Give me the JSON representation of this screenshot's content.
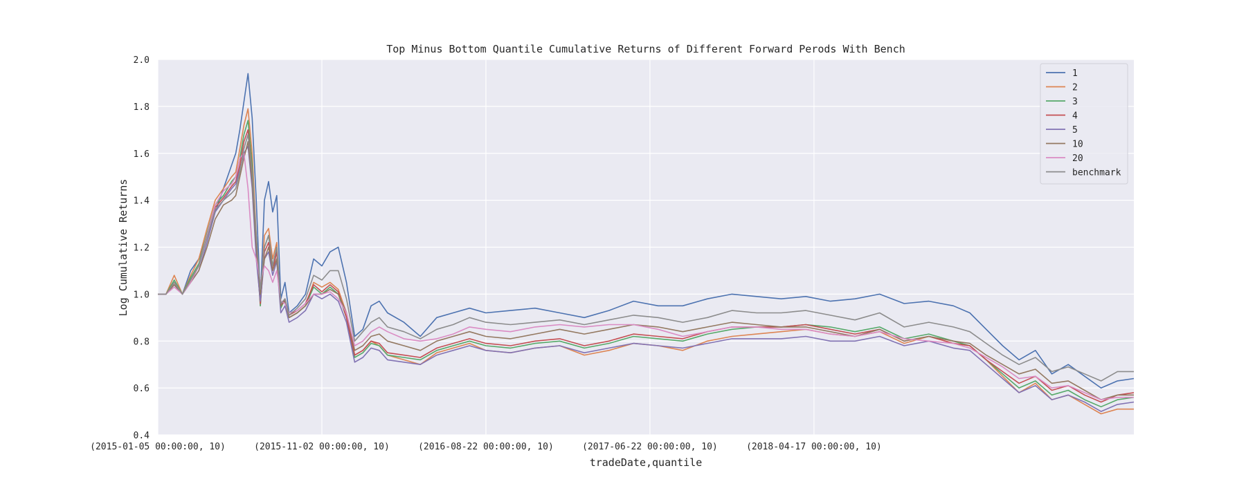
{
  "chart_data": {
    "type": "line",
    "title": "Top Minus Bottom Quantile Cumulative Returns of Different Forward Perods With Bench",
    "xlabel": "tradeDate,quantile",
    "ylabel": "Log Cumulative Returns",
    "ylim": [
      0.4,
      2.0
    ],
    "yticks": [
      "0.4",
      "0.6",
      "0.8",
      "1.0",
      "1.2",
      "1.4",
      "1.6",
      "1.8",
      "2.0"
    ],
    "xticks": [
      "(2015-01-05 00:00:00, 10)",
      "(2015-11-02 00:00:00, 10)",
      "(2016-08-22 00:00:00, 10)",
      "(2017-06-22 00:00:00, 10)",
      "(2018-04-17 00:00:00, 10)"
    ],
    "grid": true,
    "legend_position": "top-right",
    "x_range_trading_days": [
      0,
      1190
    ],
    "xtick_positions_trading_days": [
      0,
      200,
      400,
      600,
      800
    ],
    "series": [
      {
        "name": "1",
        "color": "#4c72b0",
        "x": [
          0,
          10,
          20,
          30,
          40,
          50,
          60,
          70,
          80,
          90,
          95,
          100,
          105,
          110,
          115,
          120,
          125,
          130,
          135,
          140,
          145,
          150,
          155,
          160,
          170,
          180,
          190,
          200,
          210,
          220,
          230,
          240,
          250,
          260,
          270,
          280,
          300,
          320,
          340,
          360,
          380,
          400,
          430,
          460,
          490,
          520,
          550,
          580,
          610,
          640,
          670,
          700,
          730,
          760,
          790,
          820,
          850,
          880,
          910,
          940,
          970,
          990,
          1010,
          1030,
          1050,
          1070,
          1090,
          1110,
          1130,
          1150,
          1170,
          1190
        ],
        "y": [
          1.0,
          1.0,
          1.05,
          1.0,
          1.1,
          1.15,
          1.25,
          1.35,
          1.45,
          1.55,
          1.6,
          1.7,
          1.82,
          1.94,
          1.75,
          1.4,
          0.98,
          1.4,
          1.48,
          1.35,
          1.42,
          0.98,
          1.05,
          0.92,
          0.95,
          1.0,
          1.15,
          1.12,
          1.18,
          1.2,
          1.05,
          0.82,
          0.85,
          0.95,
          0.97,
          0.92,
          0.88,
          0.82,
          0.9,
          0.92,
          0.94,
          0.92,
          0.93,
          0.94,
          0.92,
          0.9,
          0.93,
          0.97,
          0.95,
          0.95,
          0.98,
          1.0,
          0.99,
          0.98,
          0.99,
          0.97,
          0.98,
          1.0,
          0.96,
          0.97,
          0.95,
          0.92,
          0.85,
          0.78,
          0.72,
          0.76,
          0.66,
          0.7,
          0.65,
          0.6,
          0.63,
          0.64
        ]
      },
      {
        "name": "2",
        "color": "#dd8452",
        "x": [
          0,
          10,
          20,
          30,
          40,
          50,
          60,
          70,
          80,
          90,
          95,
          100,
          105,
          110,
          115,
          120,
          125,
          130,
          135,
          140,
          145,
          150,
          155,
          160,
          170,
          180,
          190,
          200,
          210,
          220,
          230,
          240,
          250,
          260,
          270,
          280,
          300,
          320,
          340,
          360,
          380,
          400,
          430,
          460,
          490,
          520,
          550,
          580,
          610,
          640,
          670,
          700,
          730,
          760,
          790,
          820,
          850,
          880,
          910,
          940,
          970,
          990,
          1010,
          1030,
          1050,
          1070,
          1090,
          1110,
          1130,
          1150,
          1170,
          1190
        ],
        "y": [
          1.0,
          1.0,
          1.08,
          1.0,
          1.08,
          1.15,
          1.28,
          1.4,
          1.45,
          1.5,
          1.52,
          1.62,
          1.72,
          1.79,
          1.6,
          1.25,
          0.95,
          1.25,
          1.28,
          1.15,
          1.22,
          0.95,
          0.98,
          0.9,
          0.92,
          0.95,
          1.05,
          1.03,
          1.05,
          1.02,
          0.92,
          0.74,
          0.76,
          0.8,
          0.78,
          0.74,
          0.72,
          0.7,
          0.75,
          0.77,
          0.79,
          0.76,
          0.75,
          0.77,
          0.78,
          0.74,
          0.76,
          0.79,
          0.78,
          0.76,
          0.8,
          0.82,
          0.83,
          0.84,
          0.85,
          0.83,
          0.82,
          0.84,
          0.79,
          0.82,
          0.79,
          0.78,
          0.72,
          0.65,
          0.58,
          0.62,
          0.55,
          0.57,
          0.53,
          0.49,
          0.51,
          0.51
        ]
      },
      {
        "name": "3",
        "color": "#55a868",
        "x": [
          0,
          10,
          20,
          30,
          40,
          50,
          60,
          70,
          80,
          90,
          95,
          100,
          105,
          110,
          115,
          120,
          125,
          130,
          135,
          140,
          145,
          150,
          155,
          160,
          170,
          180,
          190,
          200,
          210,
          220,
          230,
          240,
          250,
          260,
          270,
          280,
          300,
          320,
          340,
          360,
          380,
          400,
          430,
          460,
          490,
          520,
          550,
          580,
          610,
          640,
          670,
          700,
          730,
          760,
          790,
          820,
          850,
          880,
          910,
          940,
          970,
          990,
          1010,
          1030,
          1050,
          1070,
          1090,
          1110,
          1130,
          1150,
          1170,
          1190
        ],
        "y": [
          1.0,
          1.0,
          1.06,
          1.0,
          1.07,
          1.13,
          1.26,
          1.38,
          1.42,
          1.48,
          1.5,
          1.58,
          1.68,
          1.74,
          1.55,
          1.2,
          0.95,
          1.2,
          1.25,
          1.12,
          1.2,
          0.94,
          0.98,
          0.9,
          0.92,
          0.95,
          1.03,
          1.0,
          1.03,
          1.0,
          0.9,
          0.73,
          0.75,
          0.79,
          0.78,
          0.74,
          0.73,
          0.72,
          0.76,
          0.78,
          0.8,
          0.78,
          0.77,
          0.79,
          0.8,
          0.77,
          0.79,
          0.82,
          0.81,
          0.8,
          0.83,
          0.85,
          0.86,
          0.86,
          0.87,
          0.86,
          0.84,
          0.86,
          0.81,
          0.83,
          0.8,
          0.78,
          0.72,
          0.66,
          0.6,
          0.63,
          0.57,
          0.59,
          0.55,
          0.52,
          0.55,
          0.56
        ]
      },
      {
        "name": "4",
        "color": "#c44e52",
        "x": [
          0,
          10,
          20,
          30,
          40,
          50,
          60,
          70,
          80,
          90,
          95,
          100,
          105,
          110,
          115,
          120,
          125,
          130,
          135,
          140,
          145,
          150,
          155,
          160,
          170,
          180,
          190,
          200,
          210,
          220,
          230,
          240,
          250,
          260,
          270,
          280,
          300,
          320,
          340,
          360,
          380,
          400,
          430,
          460,
          490,
          520,
          550,
          580,
          610,
          640,
          670,
          700,
          730,
          760,
          790,
          820,
          850,
          880,
          910,
          940,
          970,
          990,
          1010,
          1030,
          1050,
          1070,
          1090,
          1110,
          1130,
          1150,
          1170,
          1190
        ],
        "y": [
          1.0,
          1.0,
          1.05,
          1.0,
          1.06,
          1.12,
          1.25,
          1.37,
          1.41,
          1.46,
          1.48,
          1.55,
          1.65,
          1.7,
          1.52,
          1.18,
          0.96,
          1.18,
          1.22,
          1.1,
          1.18,
          0.95,
          0.98,
          0.91,
          0.93,
          0.96,
          1.04,
          1.01,
          1.04,
          1.01,
          0.9,
          0.74,
          0.76,
          0.8,
          0.79,
          0.75,
          0.74,
          0.73,
          0.77,
          0.79,
          0.81,
          0.79,
          0.78,
          0.8,
          0.81,
          0.78,
          0.8,
          0.83,
          0.82,
          0.81,
          0.84,
          0.86,
          0.86,
          0.86,
          0.87,
          0.85,
          0.83,
          0.85,
          0.8,
          0.82,
          0.79,
          0.78,
          0.72,
          0.67,
          0.62,
          0.65,
          0.59,
          0.61,
          0.57,
          0.54,
          0.57,
          0.58
        ]
      },
      {
        "name": "5",
        "color": "#8172b3",
        "x": [
          0,
          10,
          20,
          30,
          40,
          50,
          60,
          70,
          80,
          90,
          95,
          100,
          105,
          110,
          115,
          120,
          125,
          130,
          135,
          140,
          145,
          150,
          155,
          160,
          170,
          180,
          190,
          200,
          210,
          220,
          230,
          240,
          250,
          260,
          270,
          280,
          300,
          320,
          340,
          360,
          380,
          400,
          430,
          460,
          490,
          520,
          550,
          580,
          610,
          640,
          670,
          700,
          730,
          760,
          790,
          820,
          850,
          880,
          910,
          940,
          970,
          990,
          1010,
          1030,
          1050,
          1070,
          1090,
          1110,
          1130,
          1150,
          1170,
          1190
        ],
        "y": [
          1.0,
          1.0,
          1.04,
          1.0,
          1.05,
          1.1,
          1.22,
          1.35,
          1.4,
          1.45,
          1.47,
          1.53,
          1.6,
          1.63,
          1.45,
          1.15,
          0.97,
          1.15,
          1.18,
          1.08,
          1.14,
          0.92,
          0.95,
          0.88,
          0.9,
          0.93,
          1.0,
          0.98,
          1.0,
          0.97,
          0.88,
          0.71,
          0.73,
          0.77,
          0.76,
          0.72,
          0.71,
          0.7,
          0.74,
          0.76,
          0.78,
          0.76,
          0.75,
          0.77,
          0.78,
          0.75,
          0.77,
          0.79,
          0.78,
          0.77,
          0.79,
          0.81,
          0.81,
          0.81,
          0.82,
          0.8,
          0.8,
          0.82,
          0.78,
          0.8,
          0.77,
          0.76,
          0.7,
          0.64,
          0.58,
          0.61,
          0.55,
          0.57,
          0.54,
          0.5,
          0.53,
          0.54
        ]
      },
      {
        "name": "10",
        "color": "#937860",
        "x": [
          0,
          10,
          20,
          30,
          40,
          50,
          60,
          70,
          80,
          90,
          95,
          100,
          105,
          110,
          115,
          120,
          125,
          130,
          135,
          140,
          145,
          150,
          155,
          160,
          170,
          180,
          190,
          200,
          210,
          220,
          230,
          240,
          250,
          260,
          270,
          280,
          300,
          320,
          340,
          360,
          380,
          400,
          430,
          460,
          490,
          520,
          550,
          580,
          610,
          640,
          670,
          700,
          730,
          760,
          790,
          820,
          850,
          880,
          910,
          940,
          970,
          990,
          1010,
          1030,
          1050,
          1070,
          1090,
          1110,
          1130,
          1150,
          1170,
          1190
        ],
        "y": [
          1.0,
          1.0,
          1.04,
          1.0,
          1.05,
          1.1,
          1.2,
          1.32,
          1.38,
          1.4,
          1.42,
          1.5,
          1.58,
          1.65,
          1.48,
          1.2,
          1.0,
          1.15,
          1.2,
          1.1,
          1.15,
          0.95,
          0.97,
          0.9,
          0.92,
          0.95,
          1.0,
          1.0,
          1.02,
          1.0,
          0.92,
          0.76,
          0.78,
          0.82,
          0.83,
          0.8,
          0.78,
          0.76,
          0.8,
          0.82,
          0.84,
          0.82,
          0.81,
          0.83,
          0.85,
          0.83,
          0.85,
          0.87,
          0.86,
          0.84,
          0.86,
          0.88,
          0.87,
          0.86,
          0.86,
          0.84,
          0.82,
          0.85,
          0.8,
          0.82,
          0.8,
          0.79,
          0.74,
          0.7,
          0.66,
          0.68,
          0.62,
          0.63,
          0.59,
          0.55,
          0.57,
          0.57
        ]
      },
      {
        "name": "20",
        "color": "#da8bc3",
        "x": [
          0,
          10,
          20,
          30,
          40,
          50,
          60,
          70,
          80,
          90,
          95,
          100,
          105,
          110,
          115,
          120,
          125,
          130,
          135,
          140,
          145,
          150,
          155,
          160,
          170,
          180,
          190,
          200,
          210,
          220,
          230,
          240,
          250,
          260,
          270,
          280,
          300,
          320,
          340,
          360,
          380,
          400,
          430,
          460,
          490,
          520,
          550,
          580,
          610,
          640,
          670,
          700,
          730,
          760,
          790,
          820,
          850,
          880,
          910,
          940,
          970,
          990,
          1010,
          1030,
          1050,
          1070,
          1090,
          1110,
          1130,
          1150,
          1170,
          1190
        ],
        "y": [
          1.0,
          1.0,
          1.03,
          1.0,
          1.05,
          1.12,
          1.25,
          1.38,
          1.44,
          1.47,
          1.5,
          1.58,
          1.6,
          1.45,
          1.2,
          1.15,
          1.05,
          1.12,
          1.1,
          1.05,
          1.1,
          0.97,
          0.96,
          0.92,
          0.93,
          0.96,
          1.0,
          1.0,
          1.01,
          0.98,
          0.92,
          0.78,
          0.8,
          0.84,
          0.86,
          0.84,
          0.81,
          0.8,
          0.81,
          0.83,
          0.86,
          0.85,
          0.84,
          0.86,
          0.87,
          0.86,
          0.87,
          0.87,
          0.85,
          0.82,
          0.84,
          0.86,
          0.86,
          0.85,
          0.85,
          0.83,
          0.82,
          0.84,
          0.81,
          0.8,
          0.79,
          0.77,
          0.73,
          0.69,
          0.64,
          0.65,
          0.6,
          0.61,
          0.58,
          0.55,
          0.56,
          0.56
        ]
      },
      {
        "name": "benchmark",
        "color": "#8c8c8c",
        "x": [
          0,
          10,
          20,
          30,
          40,
          50,
          60,
          70,
          80,
          90,
          95,
          100,
          105,
          110,
          115,
          120,
          125,
          130,
          135,
          140,
          145,
          150,
          155,
          160,
          170,
          180,
          190,
          200,
          210,
          220,
          230,
          240,
          250,
          260,
          270,
          280,
          300,
          320,
          340,
          360,
          380,
          400,
          430,
          460,
          490,
          520,
          550,
          580,
          610,
          640,
          670,
          700,
          730,
          760,
          790,
          820,
          850,
          880,
          910,
          940,
          970,
          990,
          1010,
          1030,
          1050,
          1070,
          1090,
          1110,
          1130,
          1150,
          1170,
          1190
        ],
        "y": [
          1.0,
          1.0,
          1.05,
          1.0,
          1.06,
          1.12,
          1.24,
          1.36,
          1.4,
          1.43,
          1.45,
          1.52,
          1.62,
          1.68,
          1.52,
          1.25,
          1.02,
          1.2,
          1.25,
          1.12,
          1.2,
          0.96,
          0.98,
          0.91,
          0.94,
          0.98,
          1.08,
          1.06,
          1.1,
          1.1,
          0.98,
          0.8,
          0.84,
          0.88,
          0.9,
          0.86,
          0.84,
          0.81,
          0.85,
          0.87,
          0.9,
          0.88,
          0.87,
          0.88,
          0.89,
          0.87,
          0.89,
          0.91,
          0.9,
          0.88,
          0.9,
          0.93,
          0.92,
          0.92,
          0.93,
          0.91,
          0.89,
          0.92,
          0.86,
          0.88,
          0.86,
          0.84,
          0.79,
          0.74,
          0.7,
          0.73,
          0.67,
          0.69,
          0.66,
          0.63,
          0.67,
          0.67
        ]
      }
    ]
  }
}
